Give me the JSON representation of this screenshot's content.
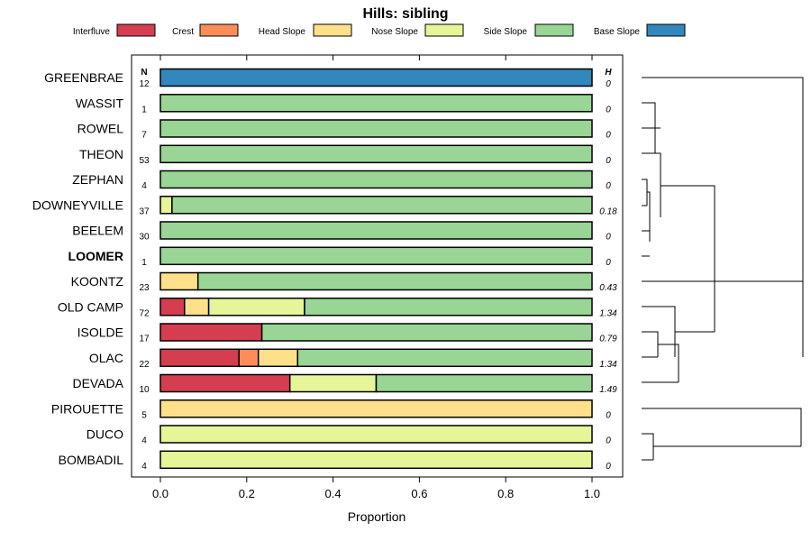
{
  "chart_data": {
    "type": "bar",
    "stacked": true,
    "orientation": "horizontal",
    "title": "Hills: sibling",
    "xlabel": "Proportion",
    "xlim": [
      0,
      1
    ],
    "xticks": [
      "0.0",
      "0.2",
      "0.4",
      "0.6",
      "0.8",
      "1.0"
    ],
    "n_header": "N",
    "h_header": "H",
    "legend": [
      {
        "name": "Interfluve",
        "color": "#D53E4F"
      },
      {
        "name": "Crest",
        "color": "#FC8D59"
      },
      {
        "name": "Head Slope",
        "color": "#FEE08B"
      },
      {
        "name": "Nose Slope",
        "color": "#E6F598"
      },
      {
        "name": "Side Slope",
        "color": "#99D594"
      },
      {
        "name": "Base Slope",
        "color": "#3288BD"
      }
    ],
    "rows": [
      {
        "label": "GREENBRAE",
        "n": "12",
        "h": "0",
        "bold": false,
        "values": [
          0,
          0,
          0,
          0,
          0,
          1.0
        ]
      },
      {
        "label": "WASSIT",
        "n": "1",
        "h": "0",
        "bold": false,
        "values": [
          0,
          0,
          0,
          0,
          1.0,
          0
        ]
      },
      {
        "label": "ROWEL",
        "n": "7",
        "h": "0",
        "bold": false,
        "values": [
          0,
          0,
          0,
          0,
          1.0,
          0
        ]
      },
      {
        "label": "THEON",
        "n": "53",
        "h": "0",
        "bold": false,
        "values": [
          0,
          0,
          0,
          0,
          1.0,
          0
        ]
      },
      {
        "label": "ZEPHAN",
        "n": "4",
        "h": "0",
        "bold": false,
        "values": [
          0,
          0,
          0,
          0,
          1.0,
          0
        ]
      },
      {
        "label": "DOWNEYVILLE",
        "n": "37",
        "h": "0.18",
        "bold": false,
        "values": [
          0,
          0,
          0,
          0.027,
          0.973,
          0
        ]
      },
      {
        "label": "BEELEM",
        "n": "30",
        "h": "0",
        "bold": false,
        "values": [
          0,
          0,
          0,
          0,
          1.0,
          0
        ]
      },
      {
        "label": "LOOMER",
        "n": "1",
        "h": "0",
        "bold": true,
        "values": [
          0,
          0,
          0,
          0,
          1.0,
          0
        ]
      },
      {
        "label": "KOONTZ",
        "n": "23",
        "h": "0.43",
        "bold": false,
        "values": [
          0,
          0,
          0.087,
          0,
          0.913,
          0
        ]
      },
      {
        "label": "OLD CAMP",
        "n": "72",
        "h": "1.34",
        "bold": false,
        "values": [
          0.056,
          0,
          0.056,
          0.222,
          0.666,
          0
        ]
      },
      {
        "label": "ISOLDE",
        "n": "17",
        "h": "0.79",
        "bold": false,
        "values": [
          0.235,
          0,
          0,
          0,
          0.765,
          0
        ]
      },
      {
        "label": "OLAC",
        "n": "22",
        "h": "1.34",
        "bold": false,
        "values": [
          0.182,
          0.045,
          0.091,
          0,
          0.682,
          0
        ]
      },
      {
        "label": "DEVADA",
        "n": "10",
        "h": "1.49",
        "bold": false,
        "values": [
          0.3,
          0,
          0,
          0.2,
          0.5,
          0
        ]
      },
      {
        "label": "PIROUETTE",
        "n": "5",
        "h": "0",
        "bold": false,
        "values": [
          0,
          0,
          1.0,
          0,
          0,
          0
        ]
      },
      {
        "label": "DUCO",
        "n": "4",
        "h": "0",
        "bold": false,
        "values": [
          0,
          0,
          0,
          1.0,
          0,
          0
        ]
      },
      {
        "label": "BOMBADIL",
        "n": "4",
        "h": "0",
        "bold": false,
        "values": [
          0,
          0,
          0,
          1.0,
          0,
          0
        ]
      }
    ]
  }
}
